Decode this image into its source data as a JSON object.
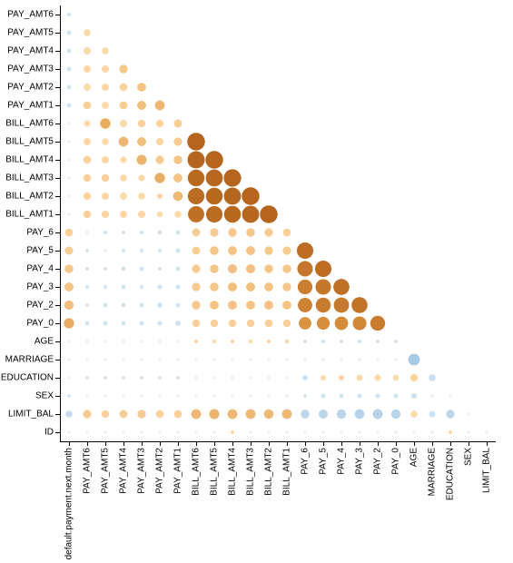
{
  "chart_data": {
    "type": "correlation-matrix",
    "title": "",
    "xlabel": "",
    "ylabel": "",
    "grid": false,
    "variables_y_top_to_bottom": [
      "PAY_AMT6",
      "PAY_AMT5",
      "PAY_AMT4",
      "PAY_AMT3",
      "PAY_AMT2",
      "PAY_AMT1",
      "BILL_AMT6",
      "BILL_AMT5",
      "BILL_AMT4",
      "BILL_AMT3",
      "BILL_AMT2",
      "BILL_AMT1",
      "PAY_6",
      "PAY_5",
      "PAY_4",
      "PAY_3",
      "PAY_2",
      "PAY_0",
      "AGE",
      "MARRIAGE",
      "EDUCATION",
      "SEX",
      "LIMIT_BAL",
      "ID"
    ],
    "variables_x_left_to_right": [
      "default.payment.next.month",
      "PAY_AMT6",
      "PAY_AMT5",
      "PAY_AMT4",
      "PAY_AMT3",
      "PAY_AMT2",
      "PAY_AMT1",
      "BILL_AMT6",
      "BILL_AMT5",
      "BILL_AMT4",
      "BILL_AMT3",
      "BILL_AMT2",
      "BILL_AMT1",
      "PAY_6",
      "PAY_5",
      "PAY_4",
      "PAY_3",
      "PAY_2",
      "PAY_0",
      "AGE",
      "MARRIAGE",
      "EDUCATION",
      "SEX",
      "LIMIT_BAL"
    ],
    "colors": {
      "positive_strong": "#b5651d",
      "positive_mid": "#e09a45",
      "positive_weak": "#fdd9a8",
      "negative_weak": "#dbe8f3",
      "negative_mid": "#a6cbe5",
      "neutral": "#eeeeee"
    },
    "rows": [
      {
        "y": "PAY_AMT6",
        "values": [
          -0.05
        ]
      },
      {
        "y": "PAY_AMT5",
        "values": [
          -0.06,
          0.15
        ]
      },
      {
        "y": "PAY_AMT4",
        "values": [
          -0.06,
          0.16,
          0.15
        ]
      },
      {
        "y": "PAY_AMT3",
        "values": [
          -0.06,
          0.16,
          0.16,
          0.22
        ]
      },
      {
        "y": "PAY_AMT2",
        "values": [
          -0.06,
          0.15,
          0.16,
          0.18,
          0.24
        ]
      },
      {
        "y": "PAY_AMT1",
        "values": [
          -0.07,
          0.19,
          0.15,
          0.2,
          0.25,
          0.29
        ]
      },
      {
        "y": "BILL_AMT6",
        "values": [
          -0.01,
          0.12,
          0.33,
          0.16,
          0.18,
          0.17,
          0.2
        ]
      },
      {
        "y": "BILL_AMT5",
        "values": [
          -0.01,
          0.16,
          0.14,
          0.29,
          0.25,
          0.17,
          0.21,
          0.95
        ]
      },
      {
        "y": "BILL_AMT4",
        "values": [
          -0.01,
          0.18,
          0.16,
          0.13,
          0.3,
          0.21,
          0.23,
          0.9,
          0.94
        ]
      },
      {
        "y": "BILL_AMT3",
        "values": [
          -0.01,
          0.18,
          0.18,
          0.14,
          0.13,
          0.32,
          0.24,
          0.85,
          0.88,
          0.92
        ]
      },
      {
        "y": "BILL_AMT2",
        "values": [
          -0.01,
          0.17,
          0.16,
          0.15,
          0.14,
          0.1,
          0.28,
          0.83,
          0.86,
          0.89,
          0.95
        ]
      },
      {
        "y": "BILL_AMT1",
        "values": [
          -0.02,
          0.18,
          0.17,
          0.16,
          0.16,
          0.1,
          0.14,
          0.8,
          0.83,
          0.86,
          0.89,
          0.95
        ]
      },
      {
        "y": "PAY_6",
        "values": [
          0.19,
          -0.03,
          -0.05,
          -0.05,
          -0.05,
          -0.06,
          -0.06,
          0.2,
          0.21,
          0.22,
          0.22,
          0.21,
          0.19
        ]
      },
      {
        "y": "PAY_5",
        "values": [
          0.2,
          -0.04,
          -0.03,
          -0.05,
          -0.05,
          -0.05,
          -0.06,
          0.2,
          0.23,
          0.24,
          0.24,
          0.22,
          0.21,
          0.82
        ]
      },
      {
        "y": "PAY_4",
        "values": [
          0.22,
          -0.05,
          -0.04,
          -0.06,
          -0.07,
          -0.05,
          -0.06,
          0.21,
          0.23,
          0.25,
          0.25,
          0.23,
          0.22,
          0.73,
          0.82
        ]
      },
      {
        "y": "PAY_3",
        "values": [
          0.24,
          -0.05,
          -0.05,
          -0.06,
          -0.05,
          -0.07,
          -0.07,
          0.21,
          0.23,
          0.25,
          0.25,
          0.24,
          0.22,
          0.66,
          0.73,
          0.78
        ]
      },
      {
        "y": "PAY_2",
        "values": [
          0.26,
          -0.04,
          -0.06,
          -0.06,
          -0.06,
          -0.08,
          -0.07,
          0.22,
          0.24,
          0.24,
          0.24,
          0.24,
          0.24,
          0.63,
          0.68,
          0.71,
          0.77
        ]
      },
      {
        "y": "PAY_0",
        "values": [
          0.32,
          -0.06,
          -0.06,
          -0.06,
          -0.07,
          -0.07,
          -0.08,
          0.18,
          0.18,
          0.18,
          0.18,
          0.19,
          0.18,
          0.47,
          0.51,
          0.54,
          0.57,
          0.67
        ]
      },
      {
        "y": "AGE",
        "values": [
          0.01,
          0.02,
          0.02,
          0.02,
          0.03,
          0.03,
          0.03,
          0.05,
          0.05,
          0.05,
          0.05,
          0.05,
          0.06,
          -0.05,
          -0.05,
          -0.05,
          -0.05,
          -0.05,
          -0.04
        ]
      },
      {
        "y": "MARRIAGE",
        "values": [
          -0.02,
          -0.01,
          -0.01,
          -0.01,
          -0.01,
          -0.01,
          -0.01,
          -0.02,
          -0.02,
          -0.02,
          -0.02,
          -0.02,
          -0.02,
          0.03,
          0.03,
          0.03,
          0.03,
          0.02,
          0.02,
          -0.41
        ]
      },
      {
        "y": "EDUCATION",
        "values": [
          0.03,
          -0.04,
          -0.04,
          -0.04,
          -0.04,
          -0.04,
          -0.04,
          -0.01,
          -0.01,
          0.0,
          -0.01,
          0.01,
          0.02,
          -0.09,
          0.09,
          0.1,
          0.12,
          0.13,
          0.1,
          0.17,
          -0.14
        ]
      },
      {
        "y": "SEX",
        "values": [
          -0.04,
          -0.0,
          -0.0,
          -0.0,
          -0.01,
          -0.0,
          -0.0,
          -0.02,
          -0.02,
          -0.02,
          -0.02,
          -0.02,
          -0.03,
          -0.04,
          -0.06,
          -0.06,
          -0.07,
          -0.07,
          -0.06,
          -0.09,
          -0.03,
          0.01
        ]
      },
      {
        "y": "LIMIT_BAL",
        "values": [
          -0.15,
          0.21,
          0.18,
          0.2,
          0.21,
          0.18,
          0.19,
          0.29,
          0.3,
          0.29,
          0.29,
          0.28,
          0.29,
          -0.24,
          -0.25,
          -0.27,
          -0.29,
          -0.3,
          -0.27,
          0.14,
          -0.11,
          -0.22,
          0.02
        ]
      },
      {
        "y": "ID",
        "values": [
          -0.01,
          0.0,
          0.0,
          0.01,
          0.0,
          0.01,
          0.02,
          0.02,
          0.02,
          0.04,
          0.02,
          0.02,
          0.02,
          -0.01,
          -0.01,
          -0.0,
          -0.02,
          -0.01,
          -0.03,
          0.02,
          -0.03,
          0.04,
          0.02,
          0.03
        ]
      }
    ]
  }
}
